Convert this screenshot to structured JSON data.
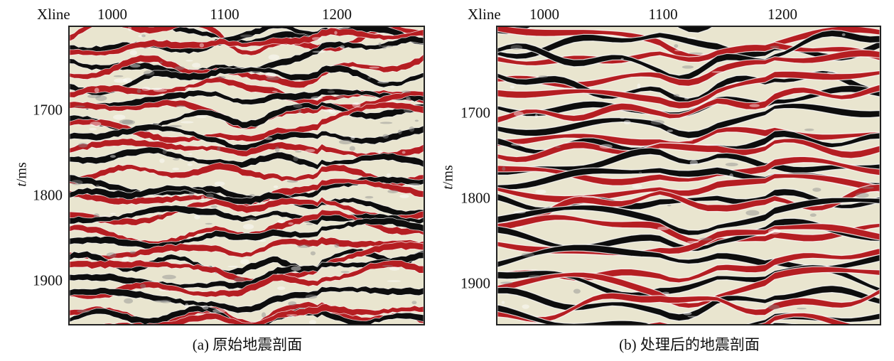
{
  "colors": {
    "red": "#b51e22",
    "black": "#0d0d0d",
    "pale": "#e9e5cf",
    "gray": "#8a8a8a"
  },
  "panels": [
    {
      "id": "a",
      "xaxis_title": "Xline",
      "xticks": [
        "1000",
        "1100",
        "1200"
      ],
      "yticks": [
        "1700",
        "1800",
        "1900"
      ],
      "ylabel_var": "t",
      "ylabel_unit": "/ms",
      "caption": "(a) 原始地震剖面"
    },
    {
      "id": "b",
      "xaxis_title": "Xline",
      "xticks": [
        "1000",
        "1100",
        "1200"
      ],
      "yticks": [
        "1700",
        "1800",
        "1900"
      ],
      "ylabel_var": "t",
      "ylabel_unit": "/ms",
      "caption": "(b) 处理后的地震剖面"
    }
  ]
}
